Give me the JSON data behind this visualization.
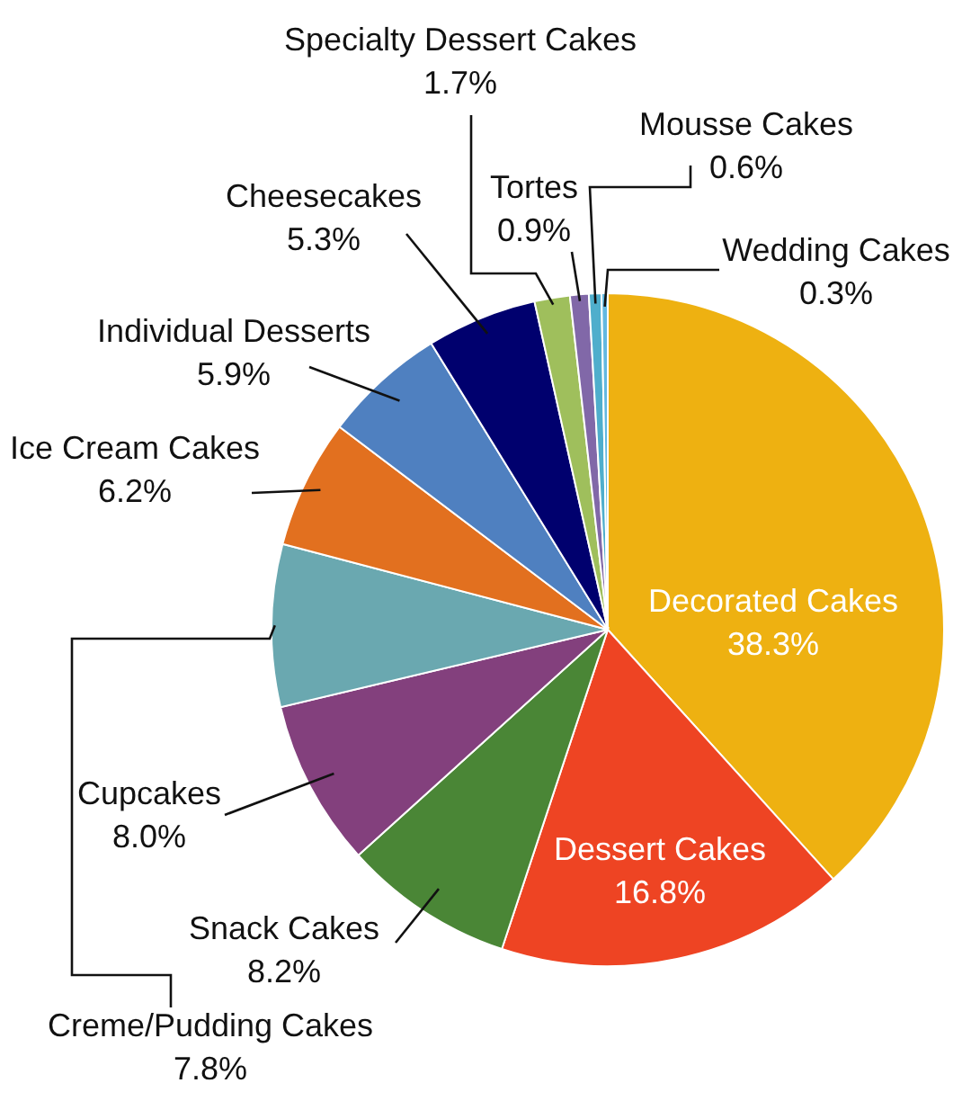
{
  "chart_data": {
    "type": "pie",
    "categories": [
      "Decorated Cakes",
      "Dessert Cakes",
      "Snack Cakes",
      "Cupcakes",
      "Creme/Pudding Cakes",
      "Ice Cream Cakes",
      "Individual Desserts",
      "Cheesecakes",
      "Specialty Dessert Cakes",
      "Tortes",
      "Mousse Cakes",
      "Wedding Cakes"
    ],
    "values": [
      38.3,
      16.8,
      8.2,
      8.0,
      7.8,
      6.2,
      5.9,
      5.3,
      1.7,
      0.9,
      0.6,
      0.3
    ],
    "colors": [
      "#eeb111",
      "#ee4423",
      "#4a8636",
      "#83407d",
      "#6aa8b0",
      "#e2701f",
      "#4f80c0",
      "#00006e",
      "#9fbf5c",
      "#8168a8",
      "#4faecc",
      "#63b8e0"
    ],
    "value_labels": [
      "38.3%",
      "16.8%",
      "8.2%",
      "8.0%",
      "7.8%",
      "6.2%",
      "5.9%",
      "5.3%",
      "1.7%",
      "0.9%",
      "0.6%",
      "0.3%"
    ]
  }
}
